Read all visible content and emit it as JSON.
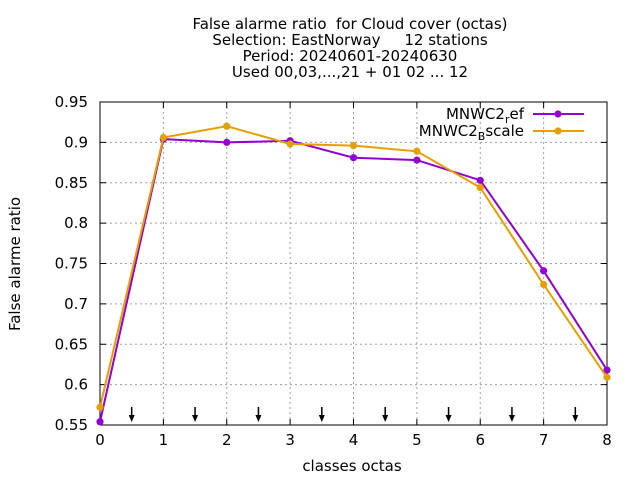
{
  "chart_data": {
    "type": "line",
    "title_lines": [
      "False alarme ratio  for Cloud cover (octas)",
      "Selection: EastNorway     12 stations",
      "Period: 20240601-20240630",
      "Used 00,03,...,21 + 01 02 ... 12"
    ],
    "xlabel": "classes octas",
    "ylabel": "False alarme ratio",
    "x": [
      0,
      1,
      2,
      3,
      4,
      5,
      6,
      7,
      8
    ],
    "xlim": [
      0,
      8
    ],
    "ylim": [
      0.55,
      0.95
    ],
    "xticks": [
      "0",
      "1",
      "2",
      "3",
      "4",
      "5",
      "6",
      "7",
      "8"
    ],
    "yticks": [
      "0.55",
      "0.6",
      "0.65",
      "0.7",
      "0.75",
      "0.8",
      "0.85",
      "0.9",
      "0.95"
    ],
    "ytick_values": [
      0.55,
      0.6,
      0.65,
      0.7,
      0.75,
      0.8,
      0.85,
      0.9,
      0.95
    ],
    "grid": true,
    "legend_position": "top-right",
    "series": [
      {
        "name_main": "MNWC2",
        "name_sub": "r",
        "name_rest": "ef",
        "color": "#9400d3",
        "values": [
          0.554,
          0.904,
          0.9,
          0.902,
          0.881,
          0.878,
          0.853,
          0.741,
          0.618
        ]
      },
      {
        "name_main": "MNWC2",
        "name_sub": "B",
        "name_rest": "scale",
        "color": "#e69f00",
        "values": [
          0.572,
          0.906,
          0.92,
          0.898,
          0.896,
          0.889,
          0.844,
          0.724,
          0.609
        ]
      }
    ],
    "arrow_markers_x": [
      0.5,
      1.5,
      2.5,
      3.5,
      4.5,
      5.5,
      6.5,
      7.5
    ]
  }
}
